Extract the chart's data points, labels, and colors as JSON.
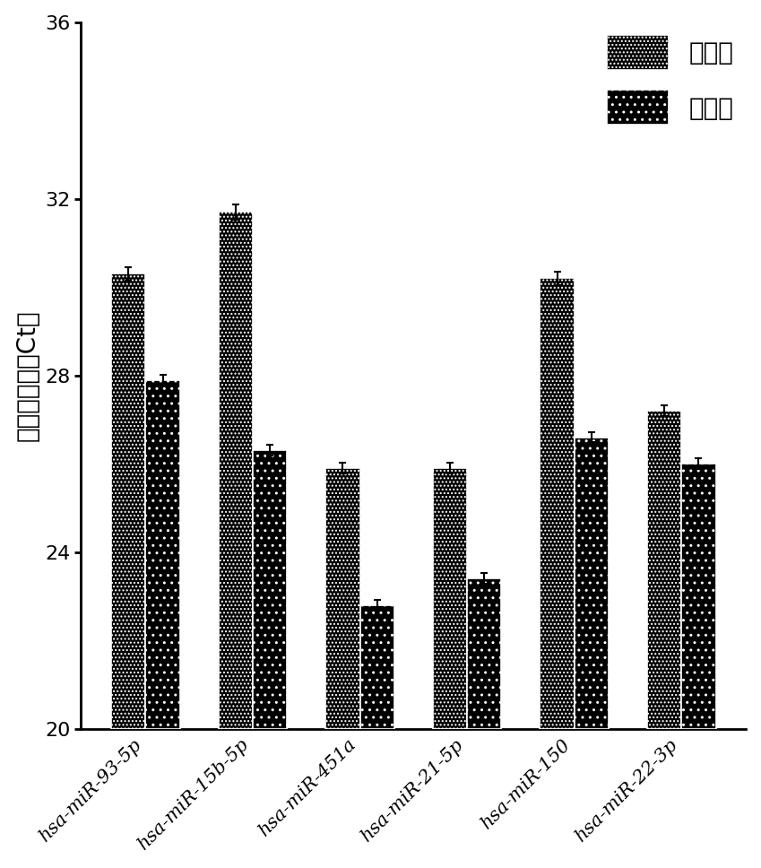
{
  "categories": [
    "hsa-miR-93-5p",
    "hsa-miR-15b-5p",
    "hsa-miR-451a",
    "hsa-miR-21-5p",
    "hsa-miR-150",
    "hsa-miR-22-3p"
  ],
  "two_step": [
    30.3,
    31.7,
    25.9,
    25.9,
    30.2,
    27.2
  ],
  "one_step": [
    27.9,
    26.3,
    22.8,
    23.4,
    26.6,
    26.0
  ],
  "two_step_err": [
    0.15,
    0.18,
    0.12,
    0.12,
    0.15,
    0.12
  ],
  "one_step_err": [
    0.12,
    0.12,
    0.12,
    0.12,
    0.12,
    0.12
  ],
  "ylabel": "阈値循环数（Ct）",
  "ylim": [
    20,
    36
  ],
  "yticks": [
    20,
    24,
    28,
    32,
    36
  ],
  "legend_labels": [
    "两步法",
    "一步法"
  ],
  "bar_width": 0.32,
  "background_color": "#ffffff"
}
